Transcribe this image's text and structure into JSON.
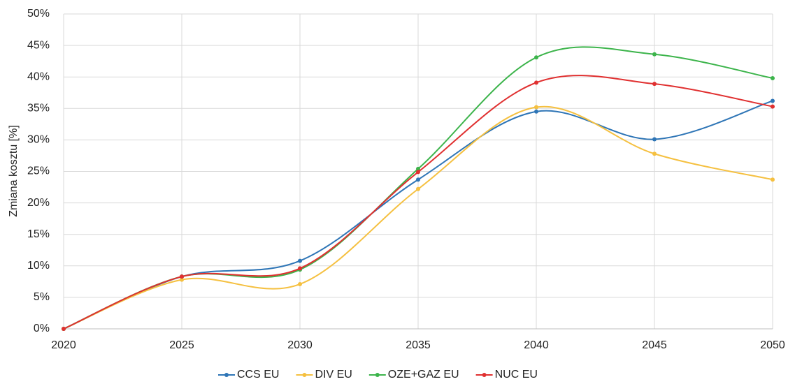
{
  "chart_data": {
    "type": "line",
    "y_label": "Zmiana kosztu [%]",
    "x": [
      2020,
      2025,
      2030,
      2035,
      2040,
      2045,
      2050
    ],
    "xlim": [
      2020,
      2050
    ],
    "xticks": [
      2020,
      2025,
      2030,
      2035,
      2040,
      2045,
      2050
    ],
    "ylim": [
      0,
      50
    ],
    "yticks": [
      {
        "value": 0,
        "label": "0%"
      },
      {
        "value": 5,
        "label": "5%"
      },
      {
        "value": 10,
        "label": "10%"
      },
      {
        "value": 15,
        "label": "15%"
      },
      {
        "value": 20,
        "label": "20%"
      },
      {
        "value": 25,
        "label": "25%"
      },
      {
        "value": 30,
        "label": "30%"
      },
      {
        "value": 35,
        "label": "35%"
      },
      {
        "value": 40,
        "label": "40%"
      },
      {
        "value": 45,
        "label": "45%"
      },
      {
        "value": 50,
        "label": "50%"
      }
    ],
    "grid": true,
    "smooth": true,
    "legend": "bottom",
    "series": [
      {
        "name": "CCS EU",
        "color": "#2e75b6",
        "values": [
          0,
          8.3,
          10.8,
          23.7,
          34.5,
          30.1,
          36.2
        ]
      },
      {
        "name": "DIV EU",
        "color": "#f5c040",
        "values": [
          0,
          7.8,
          7.1,
          22.2,
          35.2,
          27.8,
          23.7
        ]
      },
      {
        "name": "OZE+GAZ EU",
        "color": "#3cb44b",
        "values": [
          0,
          8.3,
          9.4,
          25.4,
          43.1,
          43.6,
          39.8
        ]
      },
      {
        "name": "NUC EU",
        "color": "#e03030",
        "values": [
          0,
          8.3,
          9.6,
          24.9,
          39.1,
          38.9,
          35.3
        ]
      }
    ]
  }
}
